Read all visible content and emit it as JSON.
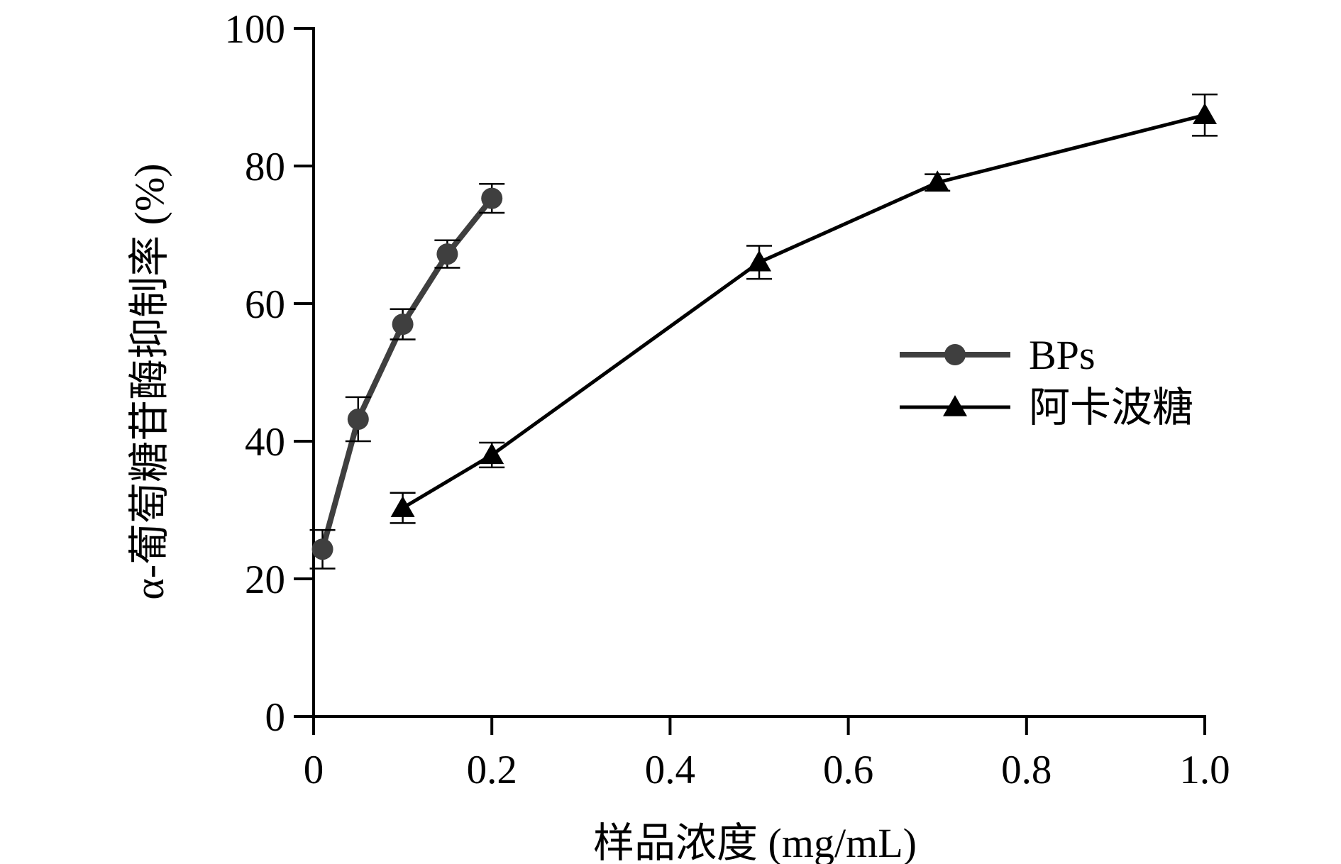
{
  "chart_data": {
    "type": "line",
    "title": "",
    "xlabel": "样品浓度 (mg/mL)",
    "ylabel": "α-葡萄糖苷酶抑制率 (%)",
    "xlim": [
      0,
      1.0
    ],
    "ylim": [
      0,
      100
    ],
    "xticks": [
      "0",
      "0.2",
      "0.4",
      "0.6",
      "0.8",
      "1.0"
    ],
    "xtick_values": [
      0,
      0.2,
      0.4,
      0.6,
      0.8,
      1.0
    ],
    "yticks": [
      "0",
      "20",
      "40",
      "60",
      "80",
      "100"
    ],
    "ytick_values": [
      0,
      20,
      40,
      60,
      80,
      100
    ],
    "grid": false,
    "legend_position": "right",
    "series": [
      {
        "name": "BPs",
        "marker": "circle",
        "color": "#3f3f3f",
        "x": [
          0.01,
          0.05,
          0.1,
          0.15,
          0.2
        ],
        "y": [
          24.3,
          43.2,
          57.0,
          67.2,
          75.3
        ],
        "error": [
          2.8,
          3.2,
          2.2,
          2.0,
          2.1
        ]
      },
      {
        "name": "阿卡波糖",
        "marker": "triangle",
        "color": "#000000",
        "x": [
          0.1,
          0.2,
          0.5,
          0.7,
          1.0
        ],
        "y": [
          30.3,
          38.0,
          66.0,
          77.6,
          87.4
        ],
        "error": [
          2.2,
          1.8,
          2.4,
          1.2,
          3.0
        ]
      }
    ]
  }
}
